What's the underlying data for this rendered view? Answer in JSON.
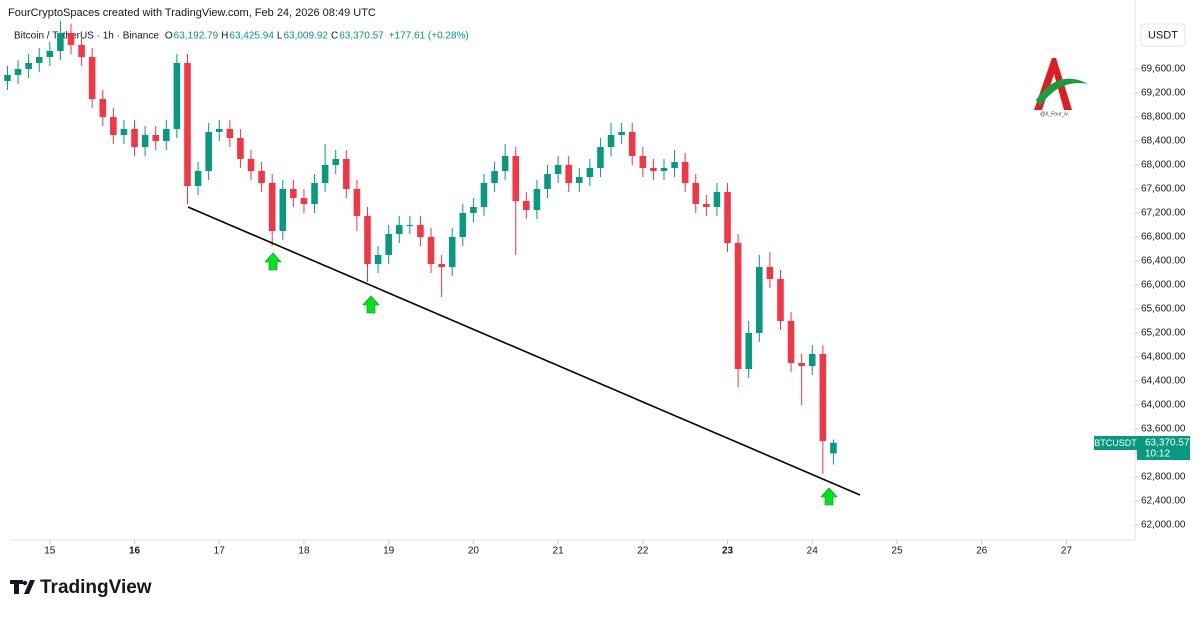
{
  "chart_data": {
    "type": "candlestick",
    "attribution": "FourCryptoSpaces created with TradingView.com, Feb 24, 2026 08:49 UTC",
    "symbol": "Bitcoin / TetherUS · 1h · Binance",
    "ohlc": [
      {
        "key": "O",
        "value": "63,192.79"
      },
      {
        "key": "H",
        "value": "63,425.94"
      },
      {
        "key": "L",
        "value": "63,009.92"
      },
      {
        "key": "C",
        "value": "63,370.57"
      }
    ],
    "change": "+177.61 (+0.28%)",
    "currency": "USDT",
    "watermark": "@X_Four_iv",
    "brand": "TradingView",
    "price_tag": {
      "ticker": "BTCUSDT",
      "price": "63,370.57",
      "countdown": "10:12"
    },
    "up_color": "#089981",
    "down_color": "#f23645",
    "x": [
      14.5,
      14.625,
      14.75,
      14.875,
      15,
      15.125,
      15.25,
      15.375,
      15.5,
      15.625,
      15.75,
      15.875,
      16,
      16.125,
      16.25,
      16.375,
      16.5,
      16.625,
      16.75,
      16.875,
      17,
      17.125,
      17.25,
      17.375,
      17.5,
      17.625,
      17.75,
      17.875,
      18,
      18.125,
      18.25,
      18.375,
      18.5,
      18.625,
      18.75,
      18.875,
      19,
      19.125,
      19.25,
      19.375,
      19.5,
      19.625,
      19.75,
      19.875,
      20,
      20.125,
      20.25,
      20.375,
      20.5,
      20.625,
      20.75,
      20.875,
      21,
      21.125,
      21.25,
      21.375,
      21.5,
      21.625,
      21.75,
      21.875,
      22,
      22.125,
      22.25,
      22.375,
      22.5,
      22.625,
      22.75,
      22.875,
      23,
      23.125,
      23.25,
      23.375,
      23.5,
      23.625,
      23.75,
      23.875,
      24,
      24.125,
      24.25
    ],
    "open": [
      69400,
      69500,
      69600,
      69700,
      69800,
      69900,
      70200,
      70000,
      69800,
      69100,
      68800,
      68500,
      68600,
      68300,
      68500,
      68400,
      68600,
      69700,
      67650,
      67900,
      68550,
      68600,
      68450,
      68100,
      67900,
      67700,
      66900,
      67600,
      67450,
      67350,
      67700,
      68000,
      68100,
      67600,
      67150,
      66350,
      66500,
      66850,
      67000,
      67000,
      66800,
      66350,
      66300,
      66800,
      67200,
      67300,
      67700,
      67900,
      68150,
      67400,
      67250,
      67600,
      67850,
      68000,
      67700,
      67800,
      67950,
      68300,
      68500,
      68550,
      68150,
      67950,
      67900,
      67950,
      68050,
      67700,
      67350,
      67300,
      67550,
      66700,
      64600,
      65200,
      66300,
      66100,
      65400,
      64700,
      64650,
      64850,
      63192.79
    ],
    "high": [
      69650,
      69750,
      69850,
      69950,
      70050,
      70400,
      70350,
      70150,
      69950,
      69250,
      68950,
      68750,
      68750,
      68650,
      68650,
      68750,
      69850,
      69850,
      68050,
      68700,
      68750,
      68750,
      68600,
      68250,
      68050,
      67850,
      67750,
      67750,
      67600,
      67850,
      68350,
      68250,
      68250,
      67750,
      67300,
      66650,
      67000,
      67150,
      67150,
      67150,
      66950,
      66500,
      66950,
      67350,
      67450,
      67850,
      68050,
      68350,
      68300,
      67550,
      67750,
      68000,
      68150,
      68150,
      67950,
      68100,
      68450,
      68700,
      68700,
      68700,
      68300,
      68100,
      68100,
      68250,
      68200,
      67850,
      67500,
      67700,
      67700,
      66850,
      65400,
      66500,
      66550,
      66250,
      65550,
      64850,
      65000,
      65000,
      63425.94
    ],
    "low": [
      69250,
      69350,
      69450,
      69550,
      69650,
      69750,
      69850,
      69650,
      68950,
      68650,
      68350,
      68350,
      68150,
      68150,
      68250,
      68250,
      68450,
      67350,
      67500,
      67750,
      68400,
      68300,
      67950,
      67750,
      67550,
      66650,
      66750,
      67300,
      67200,
      67200,
      67550,
      67850,
      67450,
      66900,
      66050,
      66200,
      66350,
      66700,
      66850,
      66650,
      66200,
      65800,
      66150,
      66650,
      67050,
      67150,
      67550,
      67750,
      66500,
      67100,
      67100,
      67450,
      67700,
      67550,
      67550,
      67650,
      67800,
      68150,
      68350,
      68000,
      67800,
      67750,
      67750,
      67800,
      67550,
      67200,
      67150,
      67150,
      66550,
      64300,
      64450,
      65050,
      65950,
      65250,
      64550,
      64000,
      64500,
      62850,
      63009.92
    ],
    "close": [
      69500,
      69600,
      69700,
      69800,
      69900,
      70200,
      70000,
      69800,
      69100,
      68800,
      68500,
      68600,
      68300,
      68500,
      68400,
      68600,
      69700,
      67650,
      67900,
      68550,
      68600,
      68450,
      68100,
      67900,
      67700,
      66900,
      67600,
      67450,
      67350,
      67700,
      68000,
      68100,
      67600,
      67150,
      66350,
      66500,
      66850,
      67000,
      67000,
      66800,
      66350,
      66300,
      66800,
      67200,
      67300,
      67700,
      67900,
      68150,
      67400,
      67250,
      67600,
      67850,
      68000,
      67700,
      67800,
      67950,
      68300,
      68500,
      68550,
      68150,
      67950,
      67900,
      67950,
      68050,
      67700,
      67350,
      67300,
      67550,
      66700,
      64600,
      65200,
      66300,
      66100,
      65400,
      64700,
      64650,
      64850,
      63400,
      63370.57
    ],
    "xlim": [
      14.53,
      27.81
    ],
    "xticks": [
      15,
      16,
      17,
      18,
      19,
      20,
      21,
      22,
      23,
      24,
      25,
      26,
      27
    ],
    "ylim": [
      61750,
      70583
    ],
    "yticks": [
      {
        "value": 62000,
        "label": "62,000.00"
      },
      {
        "value": 62400,
        "label": "62,400.00"
      },
      {
        "value": 62800,
        "label": "62,800.00"
      },
      {
        "value": 63200,
        "label": "63,200.00"
      },
      {
        "value": 63600,
        "label": "63,600.00"
      },
      {
        "value": 64000,
        "label": "64,000.00"
      },
      {
        "value": 64400,
        "label": "64,400.00"
      },
      {
        "value": 64800,
        "label": "64,800.00"
      },
      {
        "value": 65200,
        "label": "65,200.00"
      },
      {
        "value": 65600,
        "label": "65,600.00"
      },
      {
        "value": 66000,
        "label": "66,000.00"
      },
      {
        "value": 66400,
        "label": "66,400.00"
      },
      {
        "value": 66800,
        "label": "66,800.00"
      },
      {
        "value": 67200,
        "label": "67,200.00"
      },
      {
        "value": 67600,
        "label": "67,600.00"
      },
      {
        "value": 68000,
        "label": "68,000.00"
      },
      {
        "value": 68400,
        "label": "68,400.00"
      },
      {
        "value": 68800,
        "label": "68,800.00"
      },
      {
        "value": 69200,
        "label": "69,200.00"
      },
      {
        "value": 69600,
        "label": "69,600.00"
      }
    ]
  }
}
